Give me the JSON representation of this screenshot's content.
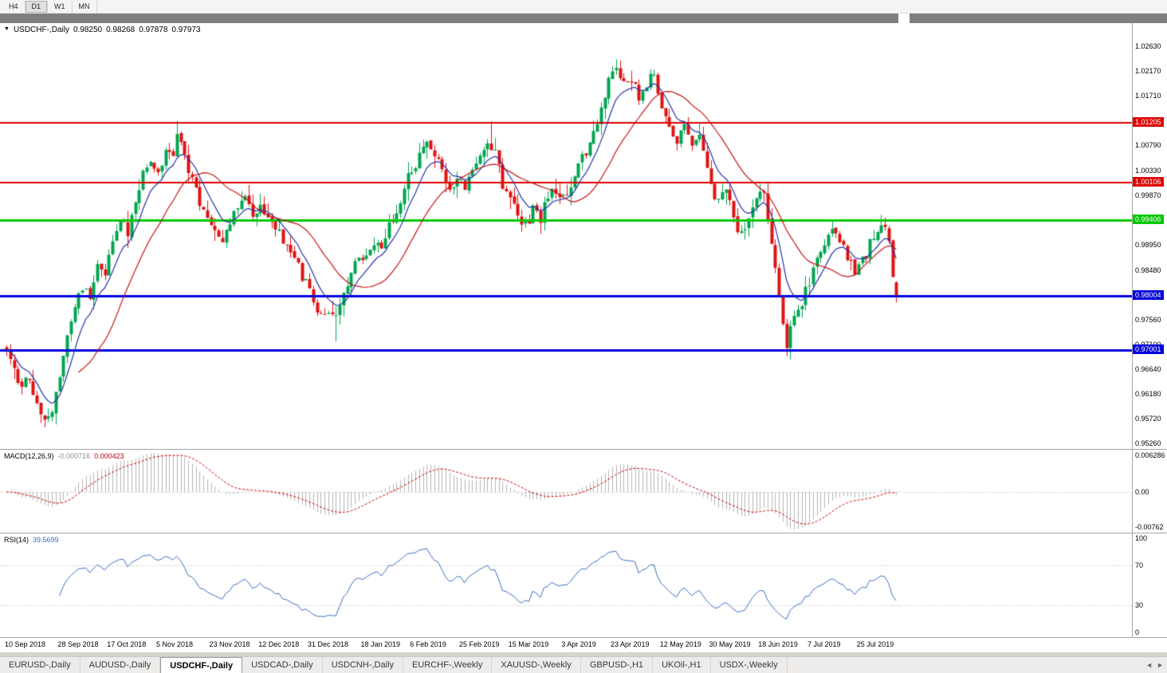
{
  "toolbar": {
    "timeframes": [
      "H4",
      "D1",
      "W1",
      "MN"
    ],
    "active": "D1"
  },
  "icons": {
    "chart_menu": "▼",
    "tab_scroll_left": "◄",
    "tab_scroll_right": "►"
  },
  "chart": {
    "title": "USDCHF-,Daily",
    "open": "0.98250",
    "high": "0.98268",
    "low": "0.97878",
    "close": "0.97973"
  },
  "colors": {
    "bull": "#00a550",
    "bear": "#e01212",
    "ma_fast": "#2433a8",
    "ma_slow": "#c41414",
    "macd_hist": "#b4b4b4",
    "macd_signal": "#cc0000",
    "rsi_line": "#3a6cbe",
    "level_dotted": "#b8b8b8",
    "badge_red": "#dd0000",
    "badge_green": "#00c800",
    "badge_blue": "#0000dd"
  },
  "price_axis": {
    "ticks": [
      {
        "label": "1.02630",
        "value": 1.0263
      },
      {
        "label": "1.02170",
        "value": 1.0217
      },
      {
        "label": "1.01710",
        "value": 1.0171
      },
      {
        "label": "1.00790",
        "value": 1.0079
      },
      {
        "label": "1.00330",
        "value": 1.0033
      },
      {
        "label": "0.99870",
        "value": 0.9987
      },
      {
        "label": "0.98950",
        "value": 0.9895
      },
      {
        "label": "0.98480",
        "value": 0.9848
      },
      {
        "label": "0.97560",
        "value": 0.9756
      },
      {
        "label": "0.97100",
        "value": 0.971
      },
      {
        "label": "0.96640",
        "value": 0.9664
      },
      {
        "label": "0.96180",
        "value": 0.9618
      },
      {
        "label": "0.95720",
        "value": 0.9572
      },
      {
        "label": "0.95260",
        "value": 0.9526
      }
    ],
    "badges": [
      {
        "label": "1.01205",
        "value": 1.01205,
        "color": "#dd0000"
      },
      {
        "label": "1.00106",
        "value": 1.00106,
        "color": "#dd0000"
      },
      {
        "label": "0.99406",
        "value": 0.99406,
        "color": "#00c800"
      },
      {
        "label": "0.98004",
        "value": 0.98004,
        "color": "#0000dd"
      },
      {
        "label": "0.97001",
        "value": 0.97001,
        "color": "#0000dd"
      }
    ]
  },
  "time_axis": {
    "labels": [
      {
        "text": "10 Sep 2018",
        "i": 0
      },
      {
        "text": "28 Sep 2018",
        "i": 14
      },
      {
        "text": "17 Oct 2018",
        "i": 27
      },
      {
        "text": "5 Nov 2018",
        "i": 40
      },
      {
        "text": "23 Nov 2018",
        "i": 54
      },
      {
        "text": "12 Dec 2018",
        "i": 67
      },
      {
        "text": "31 Dec 2018",
        "i": 80
      },
      {
        "text": "18 Jan 2019",
        "i": 94
      },
      {
        "text": "6 Feb 2019",
        "i": 107
      },
      {
        "text": "25 Feb 2019",
        "i": 120
      },
      {
        "text": "15 Mar 2019",
        "i": 133
      },
      {
        "text": "3 Apr 2019",
        "i": 147
      },
      {
        "text": "23 Apr 2019",
        "i": 160
      },
      {
        "text": "12 May 2019",
        "i": 173
      },
      {
        "text": "30 May 2019",
        "i": 186
      },
      {
        "text": "18 Jun 2019",
        "i": 199
      },
      {
        "text": "7 Jul 2019",
        "i": 212
      },
      {
        "text": "25 Jul 2019",
        "i": 225
      }
    ]
  },
  "tabs": [
    {
      "label": "EURUSD-,Daily",
      "active": false
    },
    {
      "label": "AUDUSD-,Daily",
      "active": false
    },
    {
      "label": "USDCHF-,Daily",
      "active": true
    },
    {
      "label": "USDCAD-,Daily",
      "active": false
    },
    {
      "label": "USDCNH-,Daily",
      "active": false
    },
    {
      "label": "EURCHF-,Weekly",
      "active": false
    },
    {
      "label": "XAUUSD-,Weekly",
      "active": false
    },
    {
      "label": "GBPUSD-,H1",
      "active": false
    },
    {
      "label": "UKOil-,H1",
      "active": false
    },
    {
      "label": "USDX-,Weekly",
      "active": false
    }
  ],
  "chart_data": {
    "type": "candlestick",
    "bars": 236,
    "anchors": [
      [
        0,
        0.969
      ],
      [
        2,
        0.9655
      ],
      [
        4,
        0.9625
      ],
      [
        6,
        0.9655
      ],
      [
        8,
        0.96
      ],
      [
        10,
        0.9575
      ],
      [
        12,
        0.9595
      ],
      [
        14,
        0.966
      ],
      [
        16,
        0.972
      ],
      [
        18,
        0.978
      ],
      [
        20,
        0.982
      ],
      [
        22,
        0.98
      ],
      [
        24,
        0.9865
      ],
      [
        26,
        0.9845
      ],
      [
        28,
        0.9905
      ],
      [
        30,
        0.994
      ],
      [
        32,
        0.9915
      ],
      [
        34,
        0.9975
      ],
      [
        36,
        1.0035
      ],
      [
        38,
        1.006
      ],
      [
        40,
        1.0035
      ],
      [
        42,
        1.007
      ],
      [
        44,
        1.0055
      ],
      [
        45,
        1.009
      ],
      [
        47,
        1.0065
      ],
      [
        49,
        1.001
      ],
      [
        51,
        0.9975
      ],
      [
        53,
        0.9945
      ],
      [
        55,
        0.9915
      ],
      [
        57,
        0.9895
      ],
      [
        59,
        0.994
      ],
      [
        61,
        0.997
      ],
      [
        63,
        0.999
      ],
      [
        65,
        0.9945
      ],
      [
        67,
        0.9965
      ],
      [
        70,
        0.9935
      ],
      [
        73,
        0.9905
      ],
      [
        76,
        0.987
      ],
      [
        79,
        0.982
      ],
      [
        81,
        0.9785
      ],
      [
        84,
        0.9755
      ],
      [
        87,
        0.9765
      ],
      [
        89,
        0.9805
      ],
      [
        91,
        0.9845
      ],
      [
        94,
        0.9875
      ],
      [
        97,
        0.9905
      ],
      [
        99,
        0.989
      ],
      [
        101,
        0.9925
      ],
      [
        103,
        0.996
      ],
      [
        105,
        1.0
      ],
      [
        107,
        1.004
      ],
      [
        109,
        1.0055
      ],
      [
        111,
        1.008
      ],
      [
        113,
        1.0065
      ],
      [
        115,
        1.0025
      ],
      [
        117,
        1.0
      ],
      [
        119,
        1.002
      ],
      [
        121,
        1.0
      ],
      [
        123,
        1.004
      ],
      [
        125,
        1.006
      ],
      [
        127,
        1.009
      ],
      [
        129,
        1.006
      ],
      [
        131,
        1.001
      ],
      [
        133,
        0.999
      ],
      [
        135,
        0.995
      ],
      [
        137,
        0.993
      ],
      [
        139,
        0.996
      ],
      [
        141,
        0.994
      ],
      [
        143,
        0.9985
      ],
      [
        145,
        1.0
      ],
      [
        147,
        0.9985
      ],
      [
        149,
        1.001
      ],
      [
        151,
        1.004
      ],
      [
        153,
        1.0065
      ],
      [
        155,
        1.0105
      ],
      [
        157,
        1.015
      ],
      [
        159,
        1.02
      ],
      [
        161,
        1.0215
      ],
      [
        163,
        1.019
      ],
      [
        165,
        1.0205
      ],
      [
        167,
        1.016
      ],
      [
        169,
        1.0195
      ],
      [
        171,
        1.0205
      ],
      [
        173,
        1.0155
      ],
      [
        175,
        1.012
      ],
      [
        177,
        1.009
      ],
      [
        179,
        1.011
      ],
      [
        181,
        1.0075
      ],
      [
        183,
        1.009
      ],
      [
        185,
        1.004
      ],
      [
        186,
        1.0005
      ],
      [
        188,
        0.9975
      ],
      [
        190,
        0.9995
      ],
      [
        192,
        0.9945
      ],
      [
        194,
        0.9915
      ],
      [
        196,
        0.9955
      ],
      [
        198,
        0.9985
      ],
      [
        200,
        1.0002
      ],
      [
        202,
        0.9905
      ],
      [
        204,
        0.98
      ],
      [
        206,
        0.971
      ],
      [
        208,
        0.9755
      ],
      [
        210,
        0.978
      ],
      [
        212,
        0.983
      ],
      [
        214,
        0.987
      ],
      [
        216,
        0.99
      ],
      [
        218,
        0.9925
      ],
      [
        220,
        0.99
      ],
      [
        222,
        0.987
      ],
      [
        224,
        0.9845
      ],
      [
        226,
        0.9865
      ],
      [
        228,
        0.9895
      ],
      [
        230,
        0.992
      ],
      [
        232,
        0.9935
      ],
      [
        233,
        0.99
      ],
      [
        234,
        0.983
      ],
      [
        235,
        0.97973
      ]
    ],
    "wicks": [
      {
        "i": 10,
        "low": 0.9556
      },
      {
        "i": 45,
        "high": 1.0125
      },
      {
        "i": 87,
        "low": 0.9716
      },
      {
        "i": 128,
        "high": 1.0124
      },
      {
        "i": 160,
        "high": 1.0226
      },
      {
        "i": 170,
        "high": 1.022
      },
      {
        "i": 201,
        "high": 1.0011
      },
      {
        "i": 206,
        "low": 0.9694
      },
      {
        "i": 232,
        "high": 0.9945
      }
    ],
    "last_bar": {
      "open": 0.9825,
      "high": 0.98268,
      "low": 0.97878,
      "close": 0.97973
    },
    "ma": [
      {
        "period": 8,
        "type": "ema",
        "color": "#2433a8"
      },
      {
        "period": 20,
        "type": "sma",
        "color": "#c41414"
      }
    ],
    "hlines": [
      {
        "value": 1.01205,
        "color": "#dd0000",
        "width": 2
      },
      {
        "value": 1.00106,
        "color": "#dd0000",
        "width": 2
      },
      {
        "value": 0.99406,
        "color": "#00c800",
        "width": 3
      },
      {
        "value": 0.98004,
        "color": "#0000dd",
        "width": 3
      },
      {
        "value": 0.97001,
        "color": "#0000dd",
        "width": 3
      }
    ],
    "macd": {
      "label": "MACD(12,26,9)",
      "value": "-0.000716",
      "signal": "0.000423",
      "axis": [
        "0.006286",
        "0.00",
        "-0.00762"
      ]
    },
    "rsi": {
      "label": "RSI(14)",
      "value": "39.5699",
      "levels": [
        70,
        30
      ],
      "axis": [
        "100",
        "70",
        "30",
        "0"
      ]
    }
  }
}
